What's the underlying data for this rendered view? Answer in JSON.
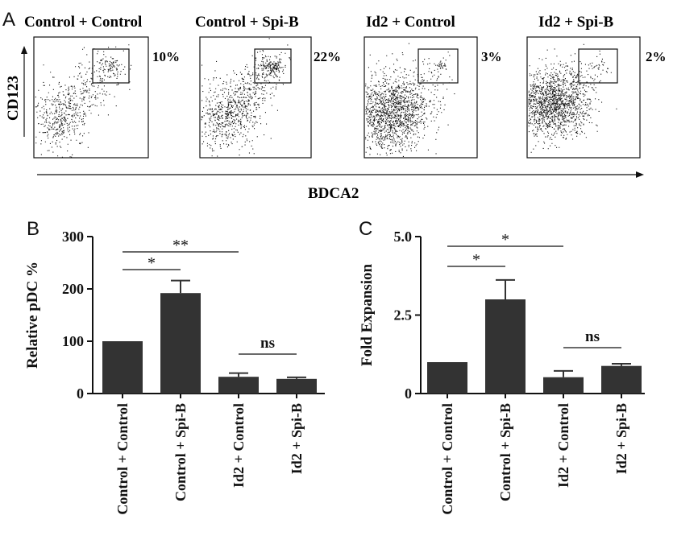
{
  "colors": {
    "bar": "#333333",
    "ink": "#111111",
    "dots": "#111111"
  },
  "panel_a": {
    "letter": "A",
    "ylabel": "CD123",
    "xlabel": "BDCA2",
    "plots": [
      {
        "title": "Control + Control",
        "percent": "10%"
      },
      {
        "title": "Control + Spi-B",
        "percent": "22%"
      },
      {
        "title": "Id2 + Control",
        "percent": "3%"
      },
      {
        "title": "Id2 + Spi-B",
        "percent": "2%"
      }
    ]
  },
  "chart_data": [
    {
      "panel": "B",
      "type": "bar",
      "categories": [
        "Control + Control",
        "Control + Spi-B",
        "Id2 + Control",
        "Id2 + Spi-B"
      ],
      "values": [
        100,
        192,
        32,
        28
      ],
      "errors": [
        0,
        24,
        7,
        3
      ],
      "ylabel": "Relative pDC %",
      "ylim": [
        0,
        300
      ],
      "yticks": [
        "0",
        "100",
        "200",
        "300"
      ],
      "significance": [
        {
          "from": 0,
          "to": 1,
          "label": "*"
        },
        {
          "from": 0,
          "to": 2,
          "label": "**"
        },
        {
          "from": 2,
          "to": 3,
          "label": "ns"
        }
      ]
    },
    {
      "panel": "C",
      "type": "bar",
      "categories": [
        "Control + Control",
        "Control + Spi-B",
        "Id2 + Control",
        "Id2 + Spi-B"
      ],
      "values": [
        1.0,
        3.0,
        0.52,
        0.88
      ],
      "errors": [
        0,
        0.62,
        0.2,
        0.07
      ],
      "ylabel": "Fold Expansion",
      "ylim": [
        0,
        5
      ],
      "yticks": [
        "0",
        "2.5",
        "5.0"
      ],
      "significance": [
        {
          "from": 0,
          "to": 1,
          "label": "*"
        },
        {
          "from": 0,
          "to": 2,
          "label": "*"
        },
        {
          "from": 2,
          "to": 3,
          "label": "ns"
        }
      ]
    }
  ]
}
